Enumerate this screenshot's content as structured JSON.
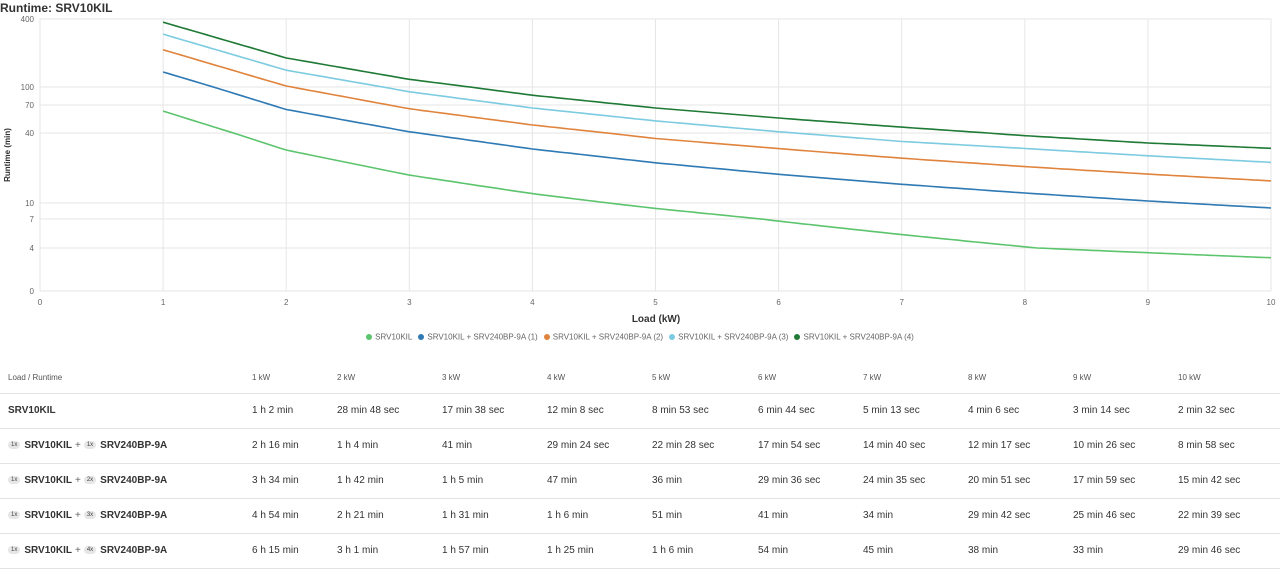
{
  "title": "Runtime: SRV10KIL",
  "chart_data": {
    "type": "line",
    "xlabel": "Load (kW)",
    "ylabel": "Runtime (min)",
    "x_ticks": [
      0,
      1,
      2,
      3,
      4,
      5,
      6,
      7,
      8,
      9,
      10
    ],
    "y_ticks": [
      0,
      4,
      7,
      10,
      40,
      70,
      100,
      400
    ],
    "xlim": [
      0,
      10
    ],
    "ylim": [
      0,
      400
    ],
    "y_scale": "log",
    "legend_position": "bottom",
    "x": [
      1,
      2,
      3,
      4,
      5,
      6,
      7,
      8,
      9,
      10
    ],
    "series": [
      {
        "name": "SRV10KIL",
        "color": "#5cc46d",
        "values": [
          62,
          28.8,
          17.63,
          12.13,
          8.88,
          6.73,
          5.22,
          4.1,
          3.23,
          2.53
        ]
      },
      {
        "name": "SRV10KIL + SRV240BP-9A (1)",
        "color": "#2f7ab4",
        "values": [
          136,
          64,
          41,
          29.4,
          22.47,
          17.9,
          14.67,
          12.28,
          10.43,
          8.97
        ]
      },
      {
        "name": "SRV10KIL + SRV240BP-9A (2)",
        "color": "#e0843d",
        "values": [
          214,
          102,
          65,
          47,
          36,
          29.6,
          24.58,
          20.85,
          17.98,
          15.7
        ]
      },
      {
        "name": "SRV10KIL + SRV240BP-9A (3)",
        "color": "#7ccbe0",
        "values": [
          294,
          141,
          91,
          66,
          51,
          41,
          34,
          29.7,
          25.77,
          22.65
        ]
      },
      {
        "name": "SRV10KIL + SRV240BP-9A (4)",
        "color": "#1f7a36",
        "values": [
          375,
          181,
          117,
          85,
          66,
          54,
          45,
          38,
          33,
          29.77
        ]
      }
    ]
  },
  "table": {
    "header": [
      "Load / Runtime",
      "1 kW",
      "2 kW",
      "3 kW",
      "4 kW",
      "5 kW",
      "6 kW",
      "7 kW",
      "8 kW",
      "9 kW",
      "10 kW"
    ],
    "rows": [
      {
        "ups": "SRV10KIL",
        "runtimes": [
          "1 h 2 min",
          "28 min 48 sec",
          "17 min 38 sec",
          "12 min 8 sec",
          "8 min 53 sec",
          "6 min 44 sec",
          "5 min 13 sec",
          "4 min 6 sec",
          "3 min 14 sec",
          "2 min 32 sec"
        ]
      },
      {
        "ups_qty": "1x",
        "ups": "SRV10KIL",
        "plus": "+",
        "battery_qty": "1x",
        "battery": "SRV240BP-9A",
        "runtimes": [
          "2 h 16 min",
          "1 h 4 min",
          "41 min",
          "29 min 24 sec",
          "22 min 28 sec",
          "17 min 54 sec",
          "14 min 40 sec",
          "12 min 17 sec",
          "10 min 26 sec",
          "8 min 58 sec"
        ]
      },
      {
        "ups_qty": "1x",
        "ups": "SRV10KIL",
        "plus": "+",
        "battery_qty": "2x",
        "battery": "SRV240BP-9A",
        "runtimes": [
          "3 h 34 min",
          "1 h 42 min",
          "1 h 5 min",
          "47 min",
          "36 min",
          "29 min 36 sec",
          "24 min 35 sec",
          "20 min 51 sec",
          "17 min 59 sec",
          "15 min 42 sec"
        ]
      },
      {
        "ups_qty": "1x",
        "ups": "SRV10KIL",
        "plus": "+",
        "battery_qty": "3x",
        "battery": "SRV240BP-9A",
        "runtimes": [
          "4 h 54 min",
          "2 h 21 min",
          "1 h 31 min",
          "1 h 6 min",
          "51 min",
          "41 min",
          "34 min",
          "29 min 42 sec",
          "25 min 46 sec",
          "22 min 39 sec"
        ]
      },
      {
        "ups_qty": "1x",
        "ups": "SRV10KIL",
        "plus": "+",
        "battery_qty": "4x",
        "battery": "SRV240BP-9A",
        "runtimes": [
          "6 h 15 min",
          "3 h 1 min",
          "1 h 57 min",
          "1 h 25 min",
          "1 h 6 min",
          "54 min",
          "45 min",
          "38 min",
          "33 min",
          "29 min 46 sec"
        ]
      }
    ]
  }
}
